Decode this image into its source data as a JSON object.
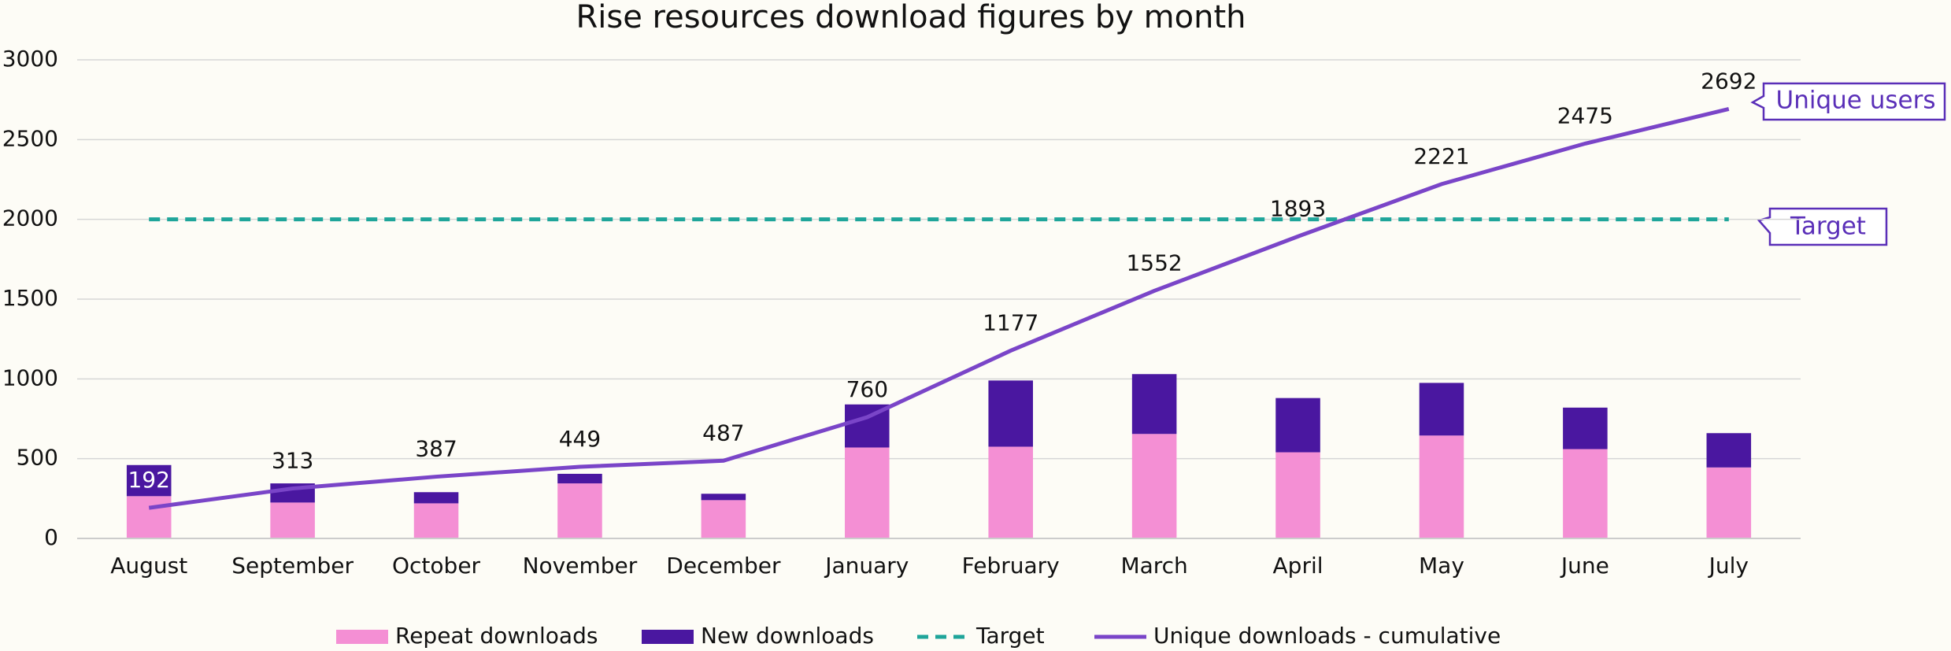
{
  "chart_data": {
    "type": "bar-line",
    "title": "Rise resources download figures by month",
    "categories": [
      "August",
      "September",
      "October",
      "November",
      "December",
      "January",
      "February",
      "March",
      "April",
      "May",
      "June",
      "July"
    ],
    "series": [
      {
        "name": "Repeat downloads",
        "kind": "stacked-bar",
        "color": "#f48fd4",
        "values": [
          265,
          225,
          220,
          345,
          240,
          570,
          575,
          655,
          540,
          645,
          560,
          445
        ]
      },
      {
        "name": "New downloads",
        "kind": "stacked-bar",
        "color": "#4a17a0",
        "values": [
          195,
          120,
          70,
          60,
          40,
          270,
          415,
          375,
          340,
          330,
          260,
          215
        ]
      },
      {
        "name": "Target",
        "kind": "dashed-line",
        "color": "#1fa59a",
        "values": [
          2000,
          2000,
          2000,
          2000,
          2000,
          2000,
          2000,
          2000,
          2000,
          2000,
          2000,
          2000
        ]
      },
      {
        "name": "Unique downloads - cumulative",
        "kind": "line",
        "color": "#7a45c8",
        "values": [
          192,
          313,
          387,
          449,
          487,
          760,
          1177,
          1552,
          1893,
          2221,
          2475,
          2692
        ]
      }
    ],
    "annotations": [
      "Unique users",
      "Target"
    ],
    "ylim": [
      0,
      3000
    ],
    "yticks": [
      0,
      500,
      1000,
      1500,
      2000,
      2500,
      3000
    ],
    "grid": true,
    "legend": "bottom"
  }
}
